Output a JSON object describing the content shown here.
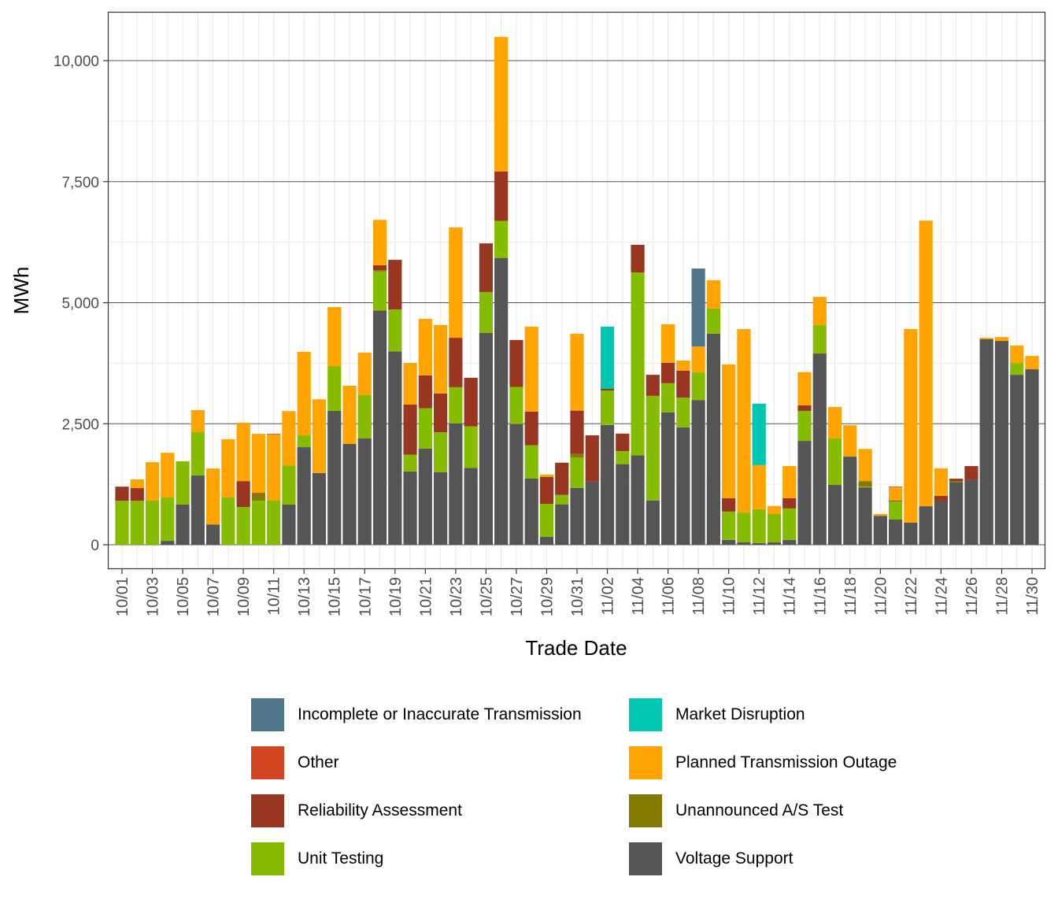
{
  "chart_data": {
    "type": "bar",
    "stacked": true,
    "xlabel": "Trade Date",
    "ylabel": "MWh",
    "ylim": [
      -500,
      10800
    ],
    "yticks": [
      0,
      2500,
      5000,
      7500,
      10000
    ],
    "ytick_labels": [
      "0",
      "2,500",
      "5,000",
      "7,500",
      "10,000"
    ],
    "categories": [
      "10/01",
      "10/02",
      "10/03",
      "10/04",
      "10/05",
      "10/06",
      "10/07",
      "10/08",
      "10/09",
      "10/10",
      "10/11",
      "10/12",
      "10/13",
      "10/14",
      "10/15",
      "10/16",
      "10/17",
      "10/18",
      "10/19",
      "10/20",
      "10/21",
      "10/22",
      "10/23",
      "10/24",
      "10/25",
      "10/26",
      "10/27",
      "10/28",
      "10/29",
      "10/30",
      "10/31",
      "11/01",
      "11/02",
      "11/03",
      "11/04",
      "11/05",
      "11/06",
      "11/07",
      "11/08",
      "11/09",
      "11/10",
      "11/11",
      "11/12",
      "11/13",
      "11/14",
      "11/15",
      "11/16",
      "11/17",
      "11/18",
      "11/19",
      "11/20",
      "11/21",
      "11/22",
      "11/23",
      "11/24",
      "11/25",
      "11/26",
      "11/27",
      "11/28",
      "11/29",
      "11/30"
    ],
    "xtick_labels": [
      "10/01",
      "10/03",
      "10/05",
      "10/07",
      "10/09",
      "10/11",
      "10/13",
      "10/15",
      "10/17",
      "10/19",
      "10/21",
      "10/23",
      "10/25",
      "10/27",
      "10/29",
      "10/31",
      "11/02",
      "11/04",
      "11/06",
      "11/08",
      "11/10",
      "11/12",
      "11/14",
      "11/16",
      "11/18",
      "11/20",
      "11/22",
      "11/24",
      "11/26",
      "11/28",
      "11/30"
    ],
    "legend_position": "bottom",
    "series": [
      {
        "name": "Voltage Support",
        "color": "#555555",
        "values": [
          0,
          0,
          0,
          80,
          830,
          1430,
          420,
          0,
          0,
          0,
          0,
          830,
          2015,
          1480,
          2765,
          2085,
          2200,
          4840,
          3995,
          1515,
          1985,
          1500,
          2505,
          1585,
          4375,
          5925,
          2495,
          1370,
          165,
          835,
          1175,
          1305,
          2475,
          1665,
          1845,
          915,
          2735,
          2425,
          2990,
          4360,
          100,
          50,
          35,
          50,
          100,
          2145,
          3950,
          1235,
          1820,
          1185,
          590,
          520,
          455,
          795,
          895,
          1285,
          1340,
          4245,
          4210,
          3510,
          3625
        ]
      },
      {
        "name": "Unit Testing",
        "color": "#86bc00",
        "values": [
          910,
          910,
          910,
          895,
          895,
          895,
          0,
          975,
          780,
          910,
          910,
          810,
          245,
          0,
          925,
          0,
          890,
          805,
          865,
          345,
          835,
          825,
          750,
          860,
          845,
          765,
          765,
          685,
          680,
          195,
          630,
          0,
          710,
          270,
          3780,
          2160,
          600,
          615,
          570,
          520,
          585,
          615,
          700,
          585,
          650,
          620,
          585,
          960,
          0,
          15,
          0,
          375,
          0,
          0,
          0,
          0,
          0,
          0,
          0,
          245,
          0
        ]
      },
      {
        "name": "Unannounced A/S Test",
        "color": "#847a00",
        "values": [
          0,
          0,
          0,
          0,
          0,
          0,
          0,
          0,
          0,
          145,
          0,
          0,
          0,
          0,
          0,
          0,
          0,
          25,
          0,
          0,
          0,
          0,
          0,
          0,
          0,
          0,
          0,
          0,
          0,
          0,
          70,
          0,
          0,
          0,
          0,
          0,
          0,
          0,
          0,
          0,
          0,
          0,
          0,
          0,
          0,
          0,
          0,
          0,
          0,
          115,
          0,
          0,
          0,
          0,
          0,
          30,
          0,
          0,
          0,
          0,
          0
        ]
      },
      {
        "name": "Reliability Assessment",
        "color": "#983622",
        "values": [
          290,
          260,
          0,
          0,
          0,
          0,
          0,
          0,
          535,
          15,
          0,
          0,
          0,
          0,
          0,
          0,
          0,
          105,
          1025,
          1035,
          680,
          800,
          1020,
          1005,
          1005,
          1020,
          970,
          695,
          555,
          665,
          895,
          955,
          40,
          360,
          570,
          435,
          425,
          555,
          0,
          0,
          275,
          0,
          0,
          0,
          210,
          115,
          0,
          0,
          0,
          0,
          10,
          15,
          0,
          0,
          115,
          50,
          285,
          0,
          0,
          0,
          0
        ]
      },
      {
        "name": "Planned Transmission Outage",
        "color": "#ffa400",
        "values": [
          0,
          180,
          795,
          925,
          0,
          455,
          1155,
          1205,
          1205,
          1220,
          1365,
          1120,
          1725,
          1525,
          1220,
          1200,
          880,
          935,
          0,
          860,
          1165,
          1415,
          2280,
          0,
          0,
          2780,
          0,
          1755,
          50,
          0,
          1590,
          0,
          0,
          0,
          0,
          0,
          795,
          210,
          535,
          585,
          2765,
          3790,
          910,
          165,
          665,
          685,
          585,
          650,
          650,
          665,
          35,
          275,
          4000,
          5900,
          570,
          0,
          0,
          30,
          80,
          360,
          275
        ]
      },
      {
        "name": "Other",
        "color": "#d24521",
        "values": [
          0,
          0,
          0,
          0,
          0,
          0,
          0,
          0,
          0,
          0,
          15,
          0,
          0,
          0,
          0,
          0,
          0,
          0,
          0,
          0,
          0,
          0,
          0,
          0,
          0,
          0,
          0,
          0,
          0,
          0,
          0,
          0,
          0,
          0,
          0,
          0,
          0,
          0,
          0,
          0,
          0,
          0,
          0,
          0,
          0,
          0,
          0,
          0,
          0,
          0,
          0,
          15,
          0,
          0,
          0,
          0,
          0,
          0,
          0,
          0,
          0
        ]
      },
      {
        "name": "Market Disruption",
        "color": "#00c6b2",
        "values": [
          0,
          0,
          0,
          0,
          0,
          0,
          0,
          0,
          0,
          0,
          0,
          0,
          0,
          0,
          0,
          0,
          0,
          0,
          0,
          0,
          0,
          0,
          0,
          0,
          0,
          0,
          0,
          0,
          0,
          0,
          0,
          0,
          1280,
          0,
          0,
          0,
          0,
          0,
          0,
          0,
          0,
          0,
          1270,
          0,
          0,
          0,
          0,
          0,
          0,
          0,
          0,
          0,
          0,
          0,
          0,
          0,
          0,
          0,
          0,
          0,
          0
        ]
      },
      {
        "name": "Incomplete or Inaccurate Transmission",
        "color": "#4f758b",
        "values": [
          0,
          0,
          0,
          0,
          0,
          0,
          0,
          0,
          0,
          0,
          0,
          0,
          0,
          0,
          0,
          0,
          0,
          0,
          0,
          0,
          0,
          0,
          0,
          0,
          0,
          0,
          0,
          0,
          0,
          0,
          0,
          0,
          0,
          0,
          0,
          0,
          0,
          0,
          1610,
          0,
          0,
          0,
          0,
          0,
          0,
          0,
          0,
          0,
          0,
          0,
          0,
          0,
          0,
          0,
          0,
          0,
          0,
          0,
          0,
          0,
          0
        ]
      }
    ],
    "legend": [
      {
        "label": "Incomplete or Inaccurate Transmission",
        "color": "#4f758b"
      },
      {
        "label": "Market Disruption",
        "color": "#00c6b2"
      },
      {
        "label": "Other",
        "color": "#d24521"
      },
      {
        "label": "Planned Transmission Outage",
        "color": "#ffa400"
      },
      {
        "label": "Reliability Assessment",
        "color": "#983622"
      },
      {
        "label": "Unannounced A/S Test",
        "color": "#847a00"
      },
      {
        "label": "Unit Testing",
        "color": "#86bc00"
      },
      {
        "label": "Voltage Support",
        "color": "#555555"
      }
    ]
  }
}
